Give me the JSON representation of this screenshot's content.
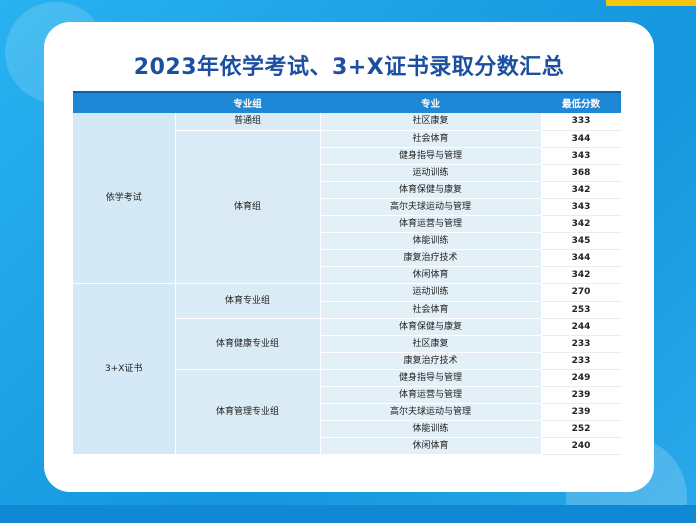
{
  "title": "2023年依学考试、3+X证书录取分数汇总",
  "headers": [
    "专业组",
    "专业",
    "最低分数"
  ],
  "categories": [
    {
      "name": "依学考试",
      "groups": [
        {
          "name": "普通组",
          "rows": [
            {
              "major": "社区康复",
              "score": "333"
            }
          ]
        },
        {
          "name": "体育组",
          "rows": [
            {
              "major": "社会体育",
              "score": "344"
            },
            {
              "major": "健身指导与管理",
              "score": "343"
            },
            {
              "major": "运动训练",
              "score": "368"
            },
            {
              "major": "体育保健与康复",
              "score": "342"
            },
            {
              "major": "高尔夫球运动与管理",
              "score": "343"
            },
            {
              "major": "体育运营与管理",
              "score": "342"
            },
            {
              "major": "体能训练",
              "score": "345"
            },
            {
              "major": "康复治疗技术",
              "score": "344"
            },
            {
              "major": "休闲体育",
              "score": "342"
            }
          ]
        }
      ]
    },
    {
      "name": "3+X证书",
      "groups": [
        {
          "name": "体育专业组",
          "rows": [
            {
              "major": "运动训练",
              "score": "270"
            },
            {
              "major": "社会体育",
              "score": "253"
            }
          ]
        },
        {
          "name": "体育健康专业组",
          "rows": [
            {
              "major": "体育保健与康复",
              "score": "244"
            },
            {
              "major": "社区康复",
              "score": "233"
            },
            {
              "major": "康复治疗技术",
              "score": "233"
            }
          ]
        },
        {
          "name": "体育管理专业组",
          "rows": [
            {
              "major": "健身指导与管理",
              "score": "249"
            },
            {
              "major": "体育运营与管理",
              "score": "239"
            },
            {
              "major": "高尔夫球运动与管理",
              "score": "239"
            },
            {
              "major": "体能训练",
              "score": "252"
            },
            {
              "major": "休闲体育",
              "score": "240"
            }
          ]
        }
      ]
    }
  ]
}
